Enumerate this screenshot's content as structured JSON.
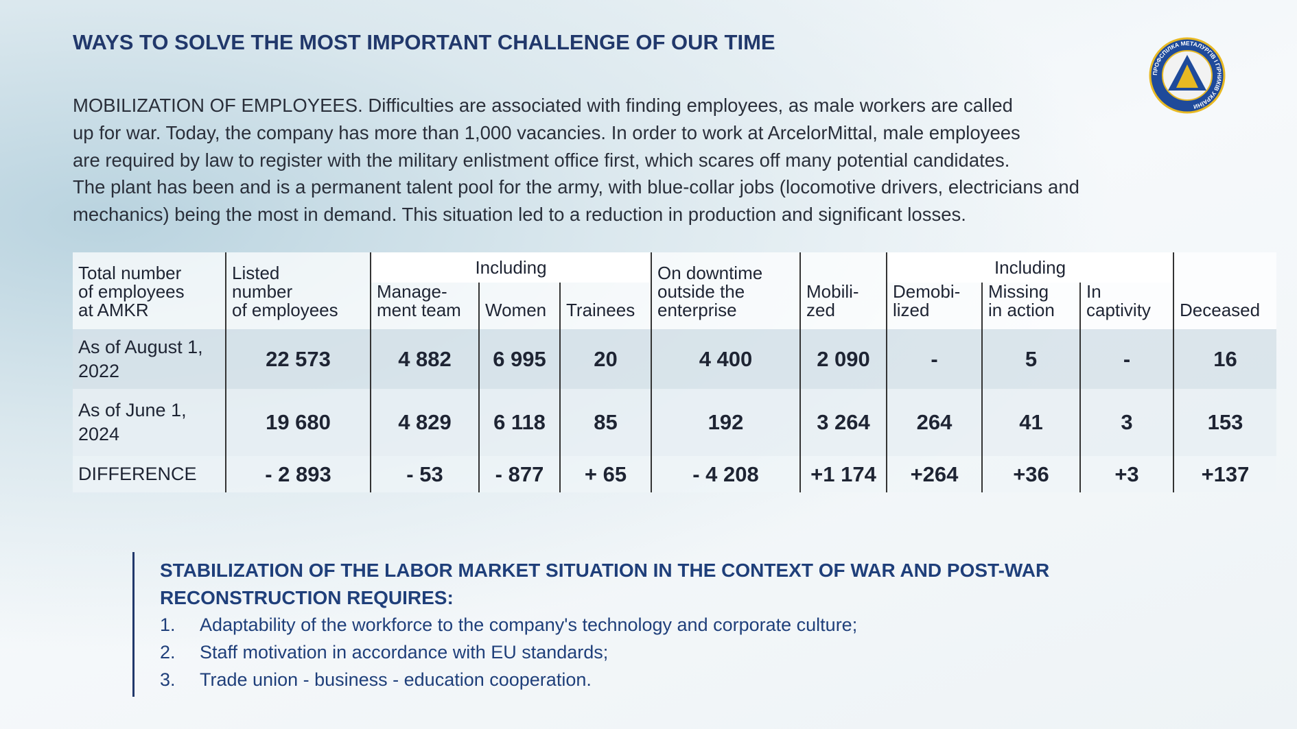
{
  "header": {
    "title": "WAYS TO SOLVE THE MOST IMPORTANT CHALLENGE OF OUR TIME"
  },
  "intro": {
    "lines": [
      "MOBILIZATION OF EMPLOYEES. Difficulties are associated with finding employees, as male workers are called",
      "up for war. Today, the company has more than 1,000 vacancies. In order to work at ArcelorMittal, male employees",
      "are required by law to register with the military enlistment office first, which scares off many potential candidates.",
      "The plant has been and is a permanent talent pool for the army, with blue-collar jobs (locomotive drivers, electricians and",
      "mechanics) being the most in demand. This situation led to a reduction in production and significant losses."
    ]
  },
  "table": {
    "group_headers": [
      "Including",
      "Including"
    ],
    "headers": [
      "Total number\nof employees\nat AMKR",
      "Listed\nnumber\nof employees",
      "Manage-\nment team",
      "Women",
      "Trainees",
      "On downtime\noutside the\nenterprise",
      "Mobili-\nzed",
      "Demobi-\nlized",
      "Missing\nin action",
      "In\ncaptivity",
      "Deceased"
    ],
    "rows": [
      [
        "As of August 1,\n2022",
        "22 573",
        "4 882",
        "6 995",
        "20",
        "4 400",
        "2 090",
        "-",
        "5",
        "-",
        "16"
      ],
      [
        "As of June 1,\n2024",
        "19 680",
        "4 829",
        "6 118",
        "85",
        "192",
        "3 264",
        "264",
        "41",
        "3",
        "153"
      ],
      [
        "DIFFERENCE",
        "- 2 893",
        "- 53",
        "- 877",
        "+ 65",
        "- 4 208",
        "+1 174",
        "+264",
        "+36",
        "+3",
        "+137"
      ]
    ]
  },
  "section": {
    "title": "STABILIZATION OF THE LABOR MARKET SITUATION IN THE CONTEXT OF WAR AND POST-WAR\nRECONSTRUCTION REQUIRES:",
    "items": [
      {
        "number": "1.",
        "text": "Adaptability of the workforce to the company's technology and corporate culture;"
      },
      {
        "number": "2.",
        "text": "Staff motivation in accordance with EU standards;"
      },
      {
        "number": "3.",
        "text": "Trade union - business - education cooperation."
      }
    ]
  },
  "logo": {
    "text": "ПРОФСПІЛКА МЕТАЛУРГІВ І ГІРНИКІВ УКРАЇНИ"
  }
}
